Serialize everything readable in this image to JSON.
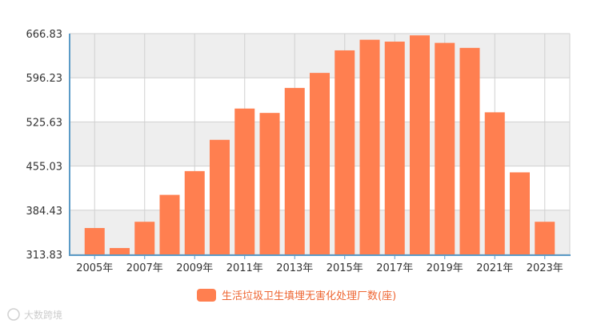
{
  "chart_data": {
    "type": "bar",
    "categories": [
      "2005年",
      "2006年",
      "2007年",
      "2008年",
      "2009年",
      "2010年",
      "2011年",
      "2012年",
      "2013年",
      "2014年",
      "2015年",
      "2016年",
      "2017年",
      "2018年",
      "2019年",
      "2020年",
      "2021年",
      "2022年",
      "2023年"
    ],
    "x_tick_labels": [
      "2005年",
      "2007年",
      "2009年",
      "2011年",
      "2013年",
      "2015年",
      "2017年",
      "2019年",
      "2021年",
      "2023年"
    ],
    "series": [
      {
        "name": "生活垃圾卫生填埋无害化处理厂数(座)",
        "color": "#ff7f50",
        "values": [
          356,
          324,
          366,
          409,
          447,
          497,
          547,
          540,
          580,
          604,
          640,
          657,
          654,
          664,
          652,
          644,
          541,
          445,
          366
        ]
      }
    ],
    "y_tick_labels": [
      "666.83",
      "596.23",
      "525.63",
      "455.03",
      "384.43",
      "313.83"
    ],
    "ylim": [
      313.83,
      666.83
    ],
    "grid": true,
    "legend_position": "bottom-center",
    "colors": {
      "bar": "#ff7f50",
      "axis": "#5b9bc7",
      "band": "#eeeeee",
      "grid": "#d0d0d0",
      "legend_text": "#ee6633"
    },
    "watermark": "大数跨境"
  }
}
